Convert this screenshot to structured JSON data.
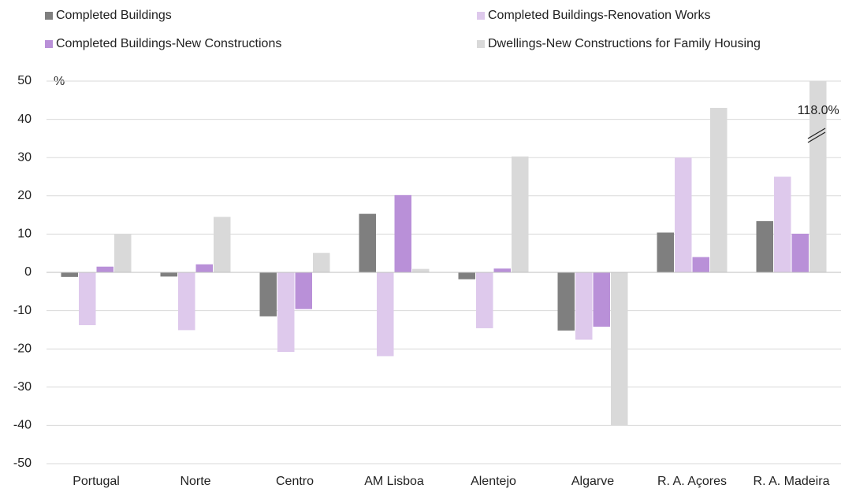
{
  "chart_data": {
    "type": "bar",
    "ylabel": "%",
    "categories": [
      "Portugal",
      "Norte",
      "Centro",
      "AM Lisboa",
      "Alentejo",
      "Algarve",
      "R. A. Açores",
      "R. A. Madeira"
    ],
    "series": [
      {
        "name": "Completed Buildings",
        "color": "#7f7f7f",
        "values": [
          -1.2,
          -1.1,
          -11.5,
          15.3,
          -1.8,
          -15.2,
          10.4,
          13.4
        ]
      },
      {
        "name": "Completed Buildings-Renovation Works",
        "color": "#dec9ec",
        "values": [
          -13.8,
          -15.1,
          -20.8,
          -21.9,
          -14.6,
          -17.6,
          30.0,
          25.0
        ]
      },
      {
        "name": "Completed Buildings-New Constructions",
        "color": "#b990d8",
        "values": [
          1.5,
          2.1,
          -9.6,
          20.2,
          1.0,
          -14.2,
          4.0,
          10.1
        ]
      },
      {
        "name": "Dwellings-New Constructions for Family Housing",
        "color": "#d9d9d9",
        "values": [
          10.0,
          14.5,
          5.1,
          0.9,
          30.3,
          -40.0,
          43.0,
          118.0
        ],
        "value_labels": [
          null,
          null,
          null,
          null,
          null,
          null,
          null,
          "118.0%"
        ]
      }
    ],
    "ylim": [
      -50,
      50
    ],
    "yticks": [
      -50,
      -40,
      -30,
      -20,
      -10,
      0,
      10,
      20,
      30,
      40,
      50
    ],
    "grid": true
  }
}
